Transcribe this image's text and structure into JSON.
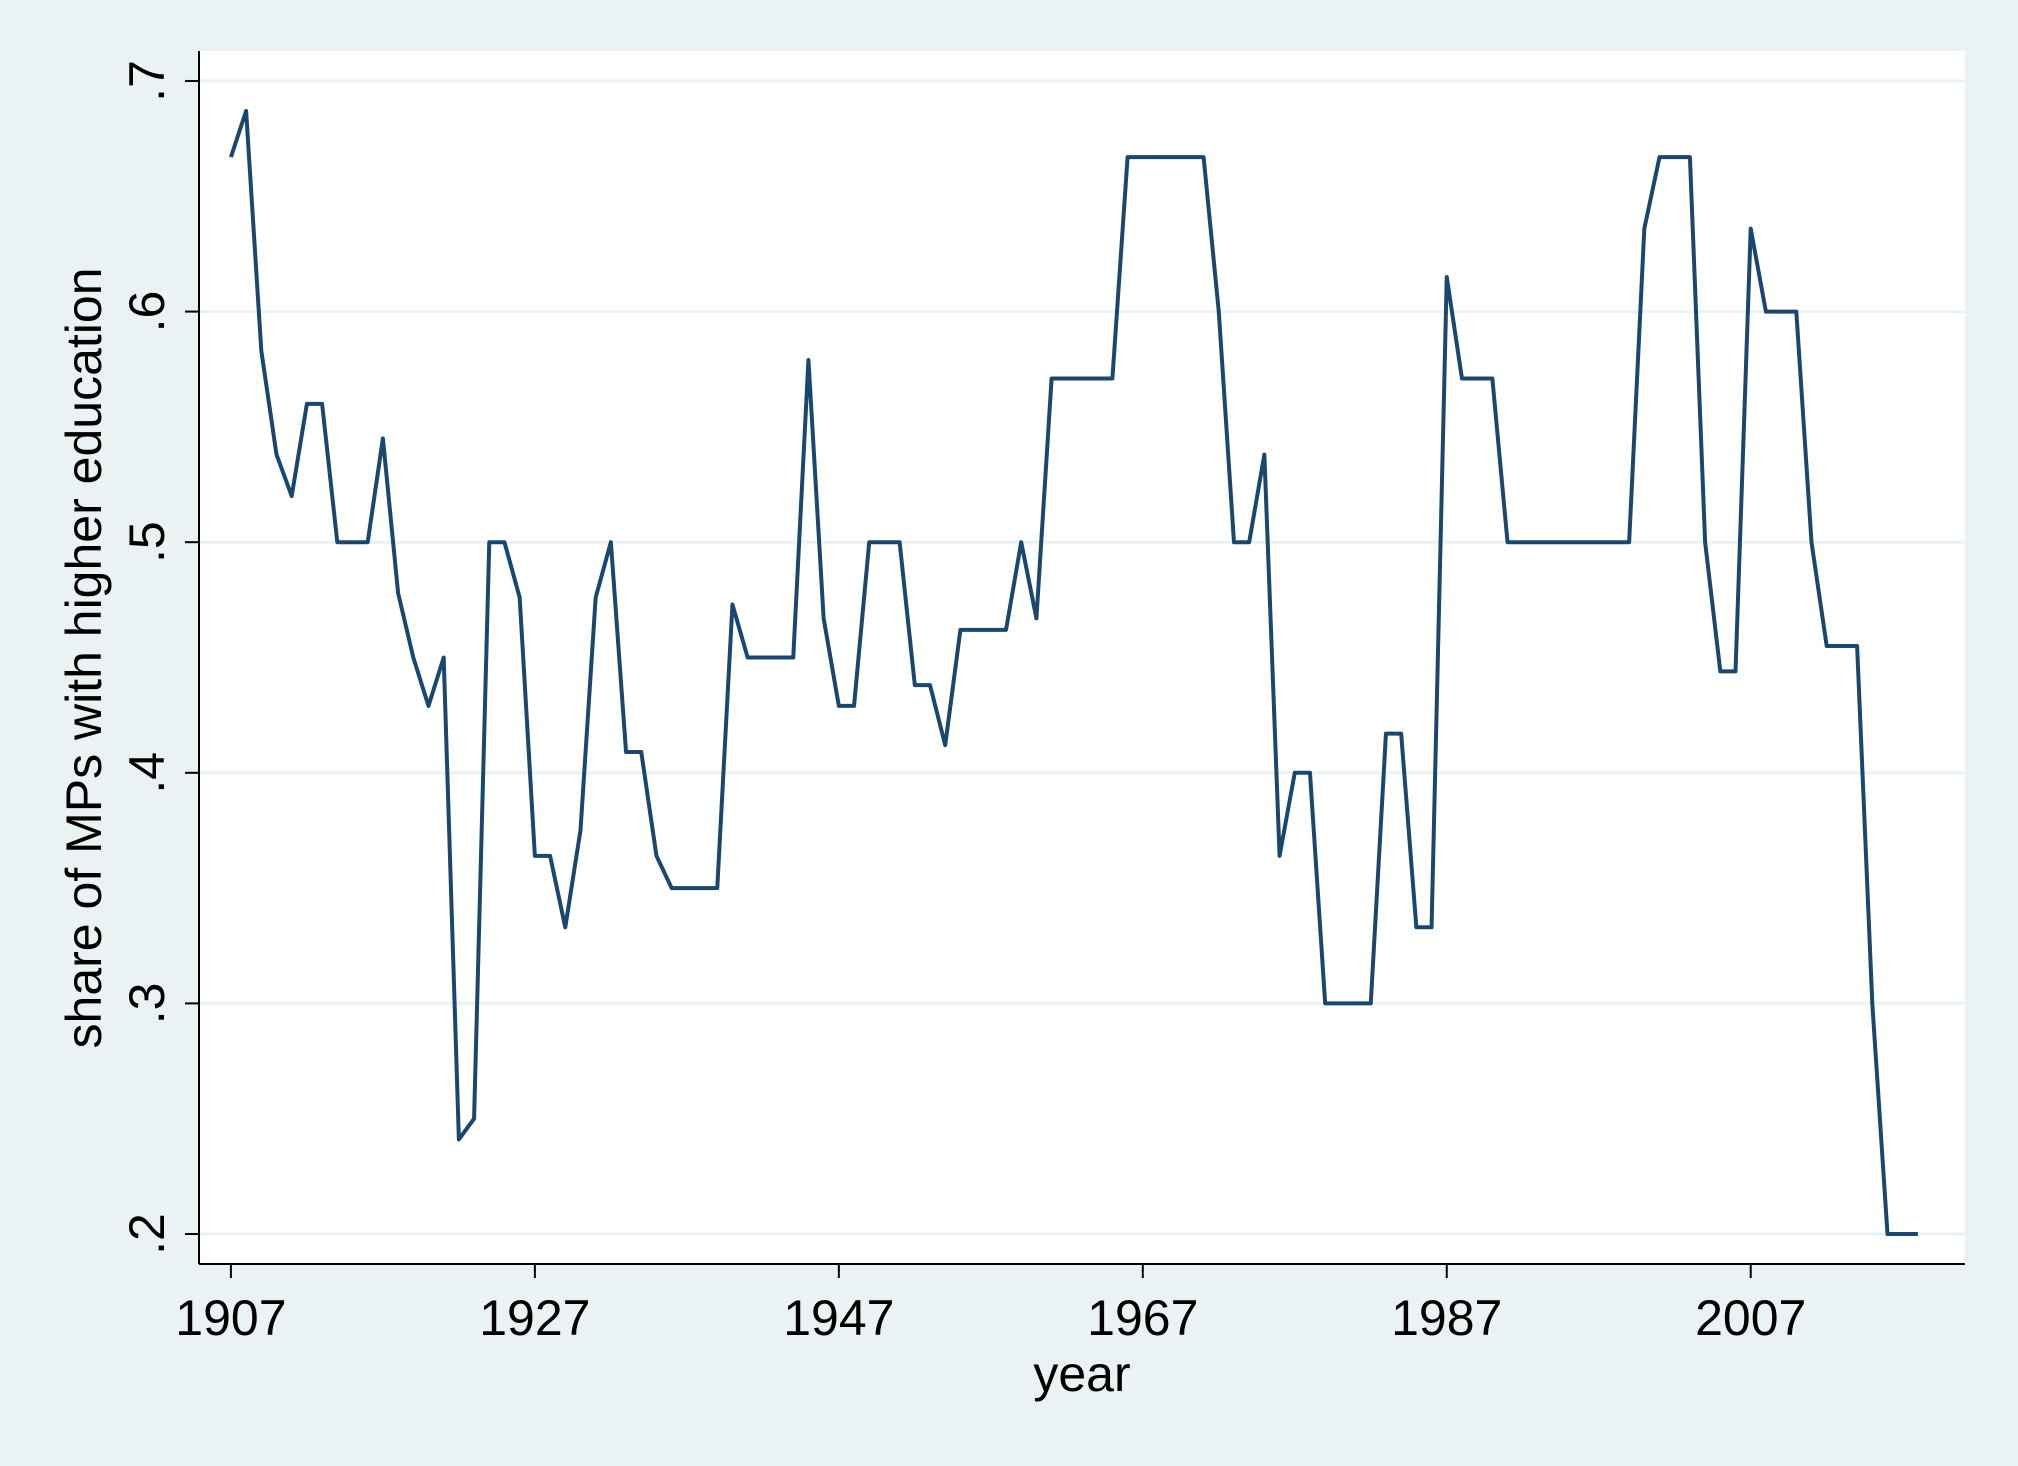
{
  "chart_data": {
    "type": "line",
    "x_label": "year",
    "y_label": "share of MPs with higher education",
    "x": [
      1907,
      1908,
      1909,
      1910,
      1911,
      1912,
      1913,
      1914,
      1915,
      1916,
      1917,
      1918,
      1919,
      1920,
      1921,
      1922,
      1923,
      1924,
      1925,
      1926,
      1927,
      1928,
      1929,
      1930,
      1931,
      1932,
      1933,
      1934,
      1935,
      1936,
      1937,
      1938,
      1939,
      1940,
      1941,
      1942,
      1943,
      1944,
      1945,
      1946,
      1947,
      1948,
      1949,
      1950,
      1951,
      1952,
      1953,
      1954,
      1955,
      1956,
      1957,
      1958,
      1959,
      1960,
      1961,
      1962,
      1963,
      1964,
      1965,
      1966,
      1967,
      1968,
      1969,
      1970,
      1971,
      1972,
      1973,
      1974,
      1975,
      1976,
      1977,
      1978,
      1979,
      1980,
      1981,
      1982,
      1983,
      1984,
      1985,
      1986,
      1987,
      1988,
      1989,
      1990,
      1991,
      1992,
      1993,
      1994,
      1995,
      1996,
      1997,
      1998,
      1999,
      2000,
      2001,
      2002,
      2003,
      2004,
      2005,
      2006,
      2007,
      2008,
      2009,
      2010,
      2011,
      2012,
      2013,
      2014,
      2015,
      2016,
      2017,
      2018
    ],
    "series": [
      {
        "color": "#1a476f",
        "values": [
          0.667,
          0.687,
          0.583,
          0.538,
          0.52,
          0.56,
          0.56,
          0.5,
          0.5,
          0.5,
          0.545,
          0.478,
          0.45,
          0.429,
          0.45,
          0.241,
          0.25,
          0.5,
          0.5,
          0.476,
          0.364,
          0.364,
          0.333,
          0.375,
          0.476,
          0.5,
          0.409,
          0.409,
          0.364,
          0.35,
          0.35,
          0.35,
          0.35,
          0.473,
          0.45,
          0.45,
          0.45,
          0.45,
          0.579,
          0.467,
          0.429,
          0.429,
          0.5,
          0.5,
          0.5,
          0.438,
          0.438,
          0.412,
          0.462,
          0.462,
          0.462,
          0.462,
          0.5,
          0.467,
          0.571,
          0.571,
          0.571,
          0.571,
          0.571,
          0.667,
          0.667,
          0.667,
          0.667,
          0.667,
          0.667,
          0.6,
          0.5,
          0.5,
          0.538,
          0.364,
          0.4,
          0.4,
          0.3,
          0.3,
          0.3,
          0.3,
          0.417,
          0.417,
          0.333,
          0.333,
          0.615,
          0.571,
          0.571,
          0.571,
          0.5,
          0.5,
          0.5,
          0.5,
          0.5,
          0.5,
          0.5,
          0.5,
          0.5,
          0.636,
          0.667,
          0.667,
          0.667,
          0.5,
          0.444,
          0.444,
          0.636,
          0.6,
          0.6,
          0.6,
          0.5,
          0.455,
          0.455,
          0.455,
          0.3,
          0.2,
          0.2,
          0.2
        ]
      }
    ],
    "xlim": [
      1904.9,
      2021.1
    ],
    "ylim": [
      0.187,
      0.713
    ],
    "xticks": [
      1907,
      1927,
      1947,
      1967,
      1987,
      2007
    ],
    "yticks": [
      {
        "value": 0.2,
        "label": ".2"
      },
      {
        "value": 0.3,
        "label": ".3"
      },
      {
        "value": 0.4,
        "label": ".4"
      },
      {
        "value": 0.5,
        "label": ".5"
      },
      {
        "value": 0.6,
        "label": ".6"
      },
      {
        "value": 0.7,
        "label": ".7"
      }
    ],
    "grid": true
  }
}
